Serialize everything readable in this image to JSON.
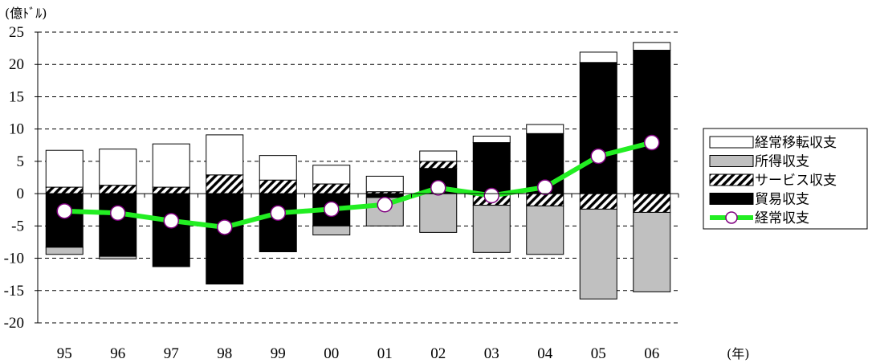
{
  "chart_data": {
    "type": "bar",
    "stacked": true,
    "unit_label": "(億ﾄﾞﾙ)",
    "x_unit_label": "(年)",
    "categories": [
      "95",
      "96",
      "97",
      "98",
      "99",
      "00",
      "01",
      "02",
      "03",
      "04",
      "05",
      "06"
    ],
    "ylim": [
      -20,
      25
    ],
    "yticks": [
      25,
      20,
      15,
      10,
      5,
      0,
      -5,
      -10,
      -15,
      -20
    ],
    "grid": "horizontal-dashed",
    "legend_position": "right",
    "series": [
      {
        "name": "経常移転収支",
        "kind": "bar",
        "color": "#ffffff",
        "pattern": "none",
        "values": [
          5.7,
          5.6,
          6.7,
          6.2,
          3.8,
          2.9,
          2.4,
          1.6,
          1.0,
          1.4,
          1.6,
          1.2
        ]
      },
      {
        "name": "所得収支",
        "kind": "bar",
        "color": "#c0c0c0",
        "pattern": "none",
        "values": [
          -1.1,
          -0.4,
          0,
          0,
          0,
          -1.4,
          -4.4,
          -6.0,
          -7.3,
          -7.5,
          -13.9,
          -12.3
        ]
      },
      {
        "name": "サービス収支",
        "kind": "bar",
        "color": "#ffffff",
        "pattern": "diagonal-hatch",
        "values": [
          1.0,
          1.3,
          1.0,
          2.9,
          2.1,
          1.5,
          0.3,
          1.1,
          -1.8,
          -1.9,
          -2.4,
          -2.9
        ]
      },
      {
        "name": "貿易収支",
        "kind": "bar",
        "color": "#000000",
        "pattern": "none",
        "values": [
          -8.3,
          -9.7,
          -11.3,
          -14.0,
          -9.0,
          -5.0,
          -0.6,
          3.9,
          7.9,
          9.3,
          20.3,
          22.2
        ]
      },
      {
        "name": "経常収支",
        "kind": "line",
        "color": "#22ee22",
        "marker_fill": "#ffffff",
        "marker_edge": "#800080",
        "values": [
          -2.7,
          -3.0,
          -4.2,
          -5.2,
          -3.0,
          -2.4,
          -1.7,
          0.9,
          -0.3,
          1.0,
          5.8,
          7.9
        ]
      }
    ]
  }
}
